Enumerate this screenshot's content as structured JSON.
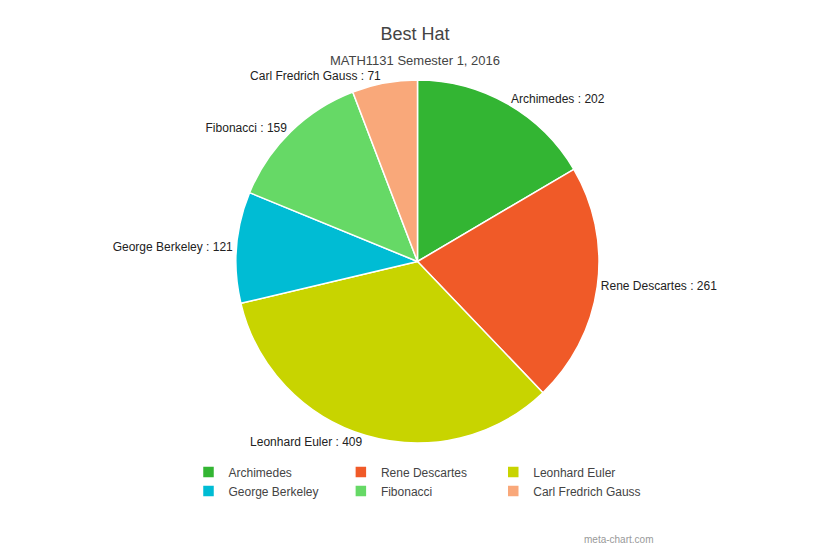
{
  "chart_data": {
    "type": "pie",
    "title": "Best Hat",
    "subtitle": "MATH1131 Semester 1, 2016",
    "categories": [
      "Archimedes",
      "Rene Descartes",
      "Leonhard Euler",
      "George Berkeley",
      "Fibonacci",
      "Carl Fredrich Gauss"
    ],
    "values": [
      202,
      261,
      409,
      121,
      159,
      71
    ],
    "value_labels": [
      "Archimedes : 202",
      "Rene Descartes : 261",
      "Leonhard Euler : 409",
      "George Berkeley : 121",
      "Fibonacci : 159",
      "Carl Fredrich Gauss : 71"
    ],
    "colors": [
      "#33b533",
      "#f05a28",
      "#c8d400",
      "#00bcd4",
      "#66d966",
      "#f9a87a"
    ],
    "data_labels": true,
    "legend": "bottom",
    "annotations": [
      "meta-chart.com"
    ]
  }
}
